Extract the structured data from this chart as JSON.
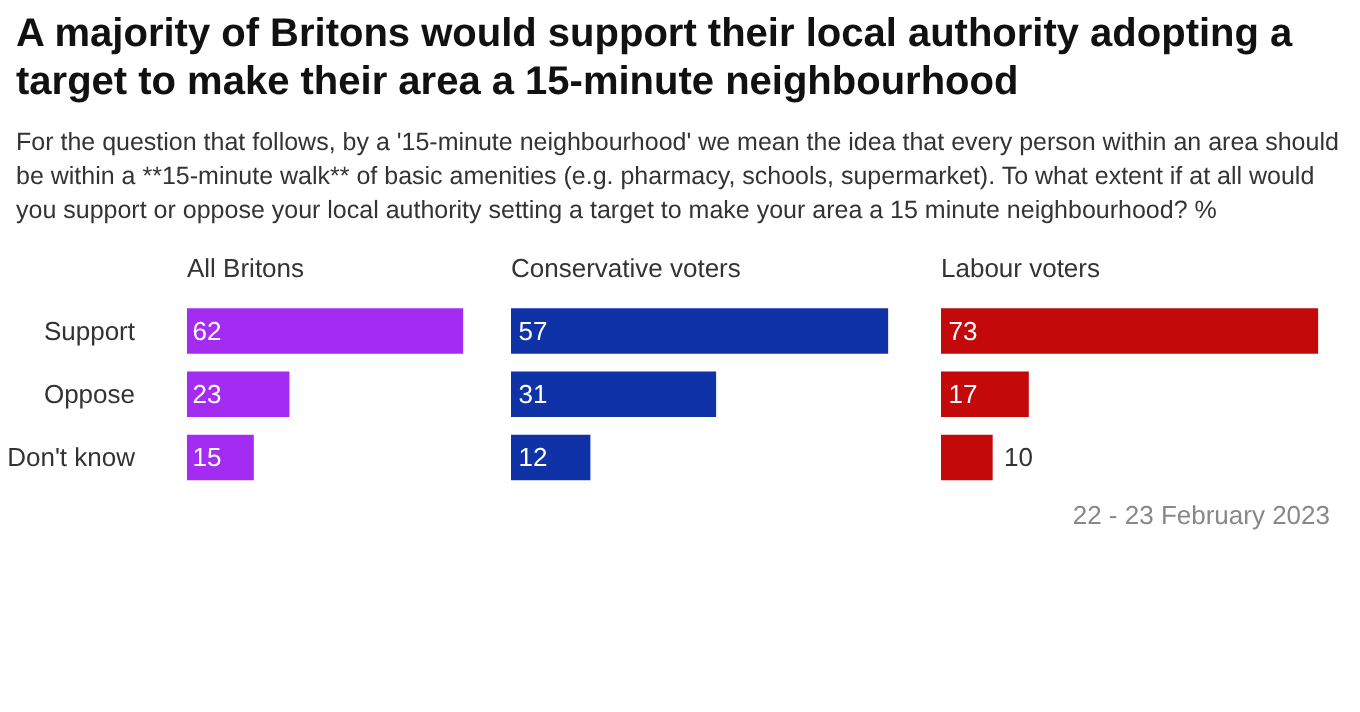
{
  "chart_data": [
    {
      "type": "bar",
      "orientation": "horizontal",
      "title": "A majority of Britons would support their local authority adopting a target to make their area a 15-minute neighbourhood",
      "subtitle": "For the question that follows, by a '15-minute neighbourhood' we mean the idea that every person within an area should be within a **15-minute walk** of basic amenities (e.g. pharmacy, schools, supermarket). To what extent if at all would you support or oppose your local authority setting a target to make your area a 15 minute neighbourhood? %",
      "xlabel": "All Britons",
      "categories": [
        "Support",
        "Oppose",
        "Don't know"
      ],
      "values": [
        62,
        23,
        15
      ],
      "color": "#a42cf2",
      "data_labels": true,
      "tick_labels": "y",
      "grid": false
    },
    {
      "type": "bar",
      "orientation": "horizontal",
      "xlabel": "Conservative voters",
      "values": [
        57,
        31,
        12
      ],
      "color": "#0f32a6",
      "data_labels": true,
      "tick_labels": false,
      "grid": false
    },
    {
      "type": "bar",
      "orientation": "horizontal",
      "xlabel": "Labour voters",
      "values": [
        73,
        17,
        10
      ],
      "color": "#c4090a",
      "data_labels": true,
      "tick_labels": false,
      "grid": false,
      "annotations": [
        "22 - 23 February 2023"
      ]
    }
  ]
}
